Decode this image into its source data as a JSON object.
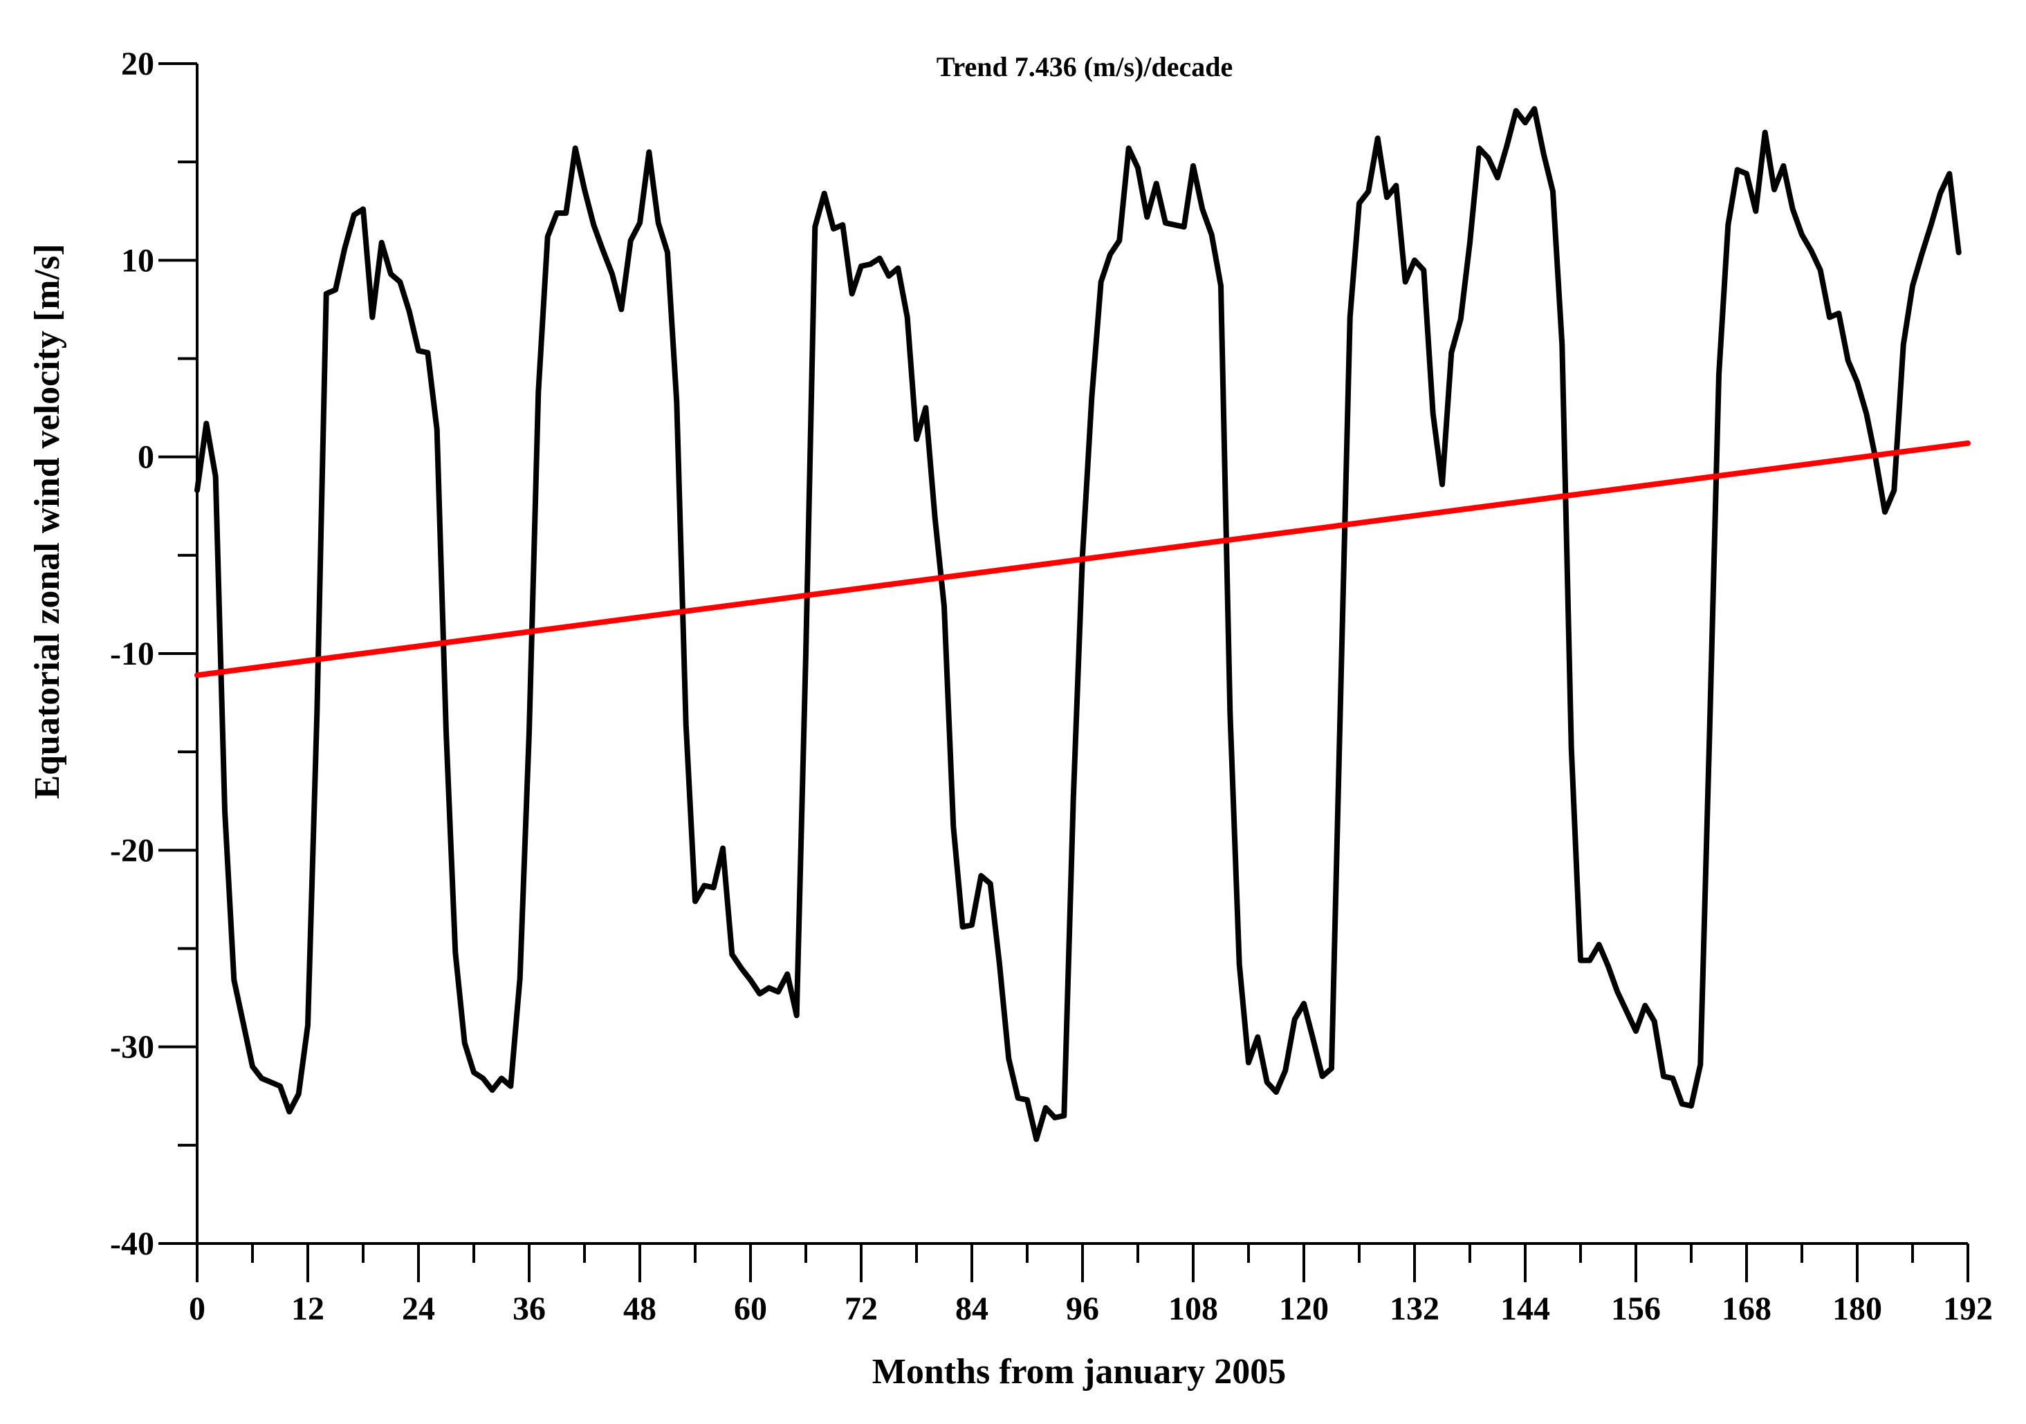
{
  "chart_data": {
    "type": "line",
    "annotation": "Trend 7.436 (m/s)/decade",
    "xlabel": "Months from january 2005",
    "ylabel": "Equatorial zonal wind velocity [m/s]",
    "xlim": [
      0,
      192
    ],
    "ylim": [
      -40,
      20
    ],
    "x_ticks": [
      "0",
      "12",
      "24",
      "36",
      "48",
      "60",
      "72",
      "84",
      "96",
      "108",
      "120",
      "132",
      "144",
      "156",
      "168",
      "180",
      "192"
    ],
    "y_ticks": [
      "20",
      "10",
      "0",
      "-10",
      "-20",
      "-30",
      "-40"
    ],
    "grid": false,
    "series": [
      {
        "color": "#000000",
        "points": [
          [
            0,
            -1.7
          ],
          [
            1,
            1.7
          ],
          [
            2,
            -1.0
          ],
          [
            3,
            -18.0
          ],
          [
            4,
            -26.6
          ],
          [
            5,
            -28.8
          ],
          [
            6,
            -31.0
          ],
          [
            7,
            -31.6
          ],
          [
            8,
            -31.8
          ],
          [
            9,
            -32.0
          ],
          [
            10,
            -33.3
          ],
          [
            11,
            -32.4
          ],
          [
            12,
            -28.9
          ],
          [
            13,
            -13.0
          ],
          [
            14,
            8.3
          ],
          [
            15,
            8.5
          ],
          [
            16,
            10.6
          ],
          [
            17,
            12.3
          ],
          [
            18,
            12.6
          ],
          [
            19,
            7.1
          ],
          [
            20,
            10.9
          ],
          [
            21,
            9.3
          ],
          [
            22,
            8.9
          ],
          [
            23,
            7.4
          ],
          [
            24,
            5.4
          ],
          [
            25,
            5.3
          ],
          [
            26,
            1.4
          ],
          [
            27,
            -14.0
          ],
          [
            28,
            -25.2
          ],
          [
            29,
            -29.8
          ],
          [
            30,
            -31.3
          ],
          [
            31,
            -31.6
          ],
          [
            32,
            -32.2
          ],
          [
            33,
            -31.6
          ],
          [
            34,
            -32.0
          ],
          [
            35,
            -26.5
          ],
          [
            36,
            -14.0
          ],
          [
            37,
            3.3
          ],
          [
            38,
            11.2
          ],
          [
            39,
            12.4
          ],
          [
            40,
            12.4
          ],
          [
            41,
            15.7
          ],
          [
            42,
            13.6
          ],
          [
            43,
            11.8
          ],
          [
            44,
            10.5
          ],
          [
            45,
            9.3
          ],
          [
            46,
            7.5
          ],
          [
            47,
            11.0
          ],
          [
            48,
            11.9
          ],
          [
            49,
            15.5
          ],
          [
            50,
            11.9
          ],
          [
            51,
            10.4
          ],
          [
            52,
            2.8
          ],
          [
            53,
            -13.6
          ],
          [
            54,
            -22.6
          ],
          [
            55,
            -21.8
          ],
          [
            56,
            -21.9
          ],
          [
            57,
            -19.9
          ],
          [
            58,
            -25.3
          ],
          [
            59,
            -26.0
          ],
          [
            60,
            -26.6
          ],
          [
            61,
            -27.3
          ],
          [
            62,
            -27.0
          ],
          [
            63,
            -27.2
          ],
          [
            64,
            -26.3
          ],
          [
            65,
            -28.4
          ],
          [
            66,
            -10.0
          ],
          [
            67,
            11.7
          ],
          [
            68,
            13.4
          ],
          [
            69,
            11.6
          ],
          [
            70,
            11.8
          ],
          [
            71,
            8.3
          ],
          [
            72,
            9.7
          ],
          [
            73,
            9.8
          ],
          [
            74,
            10.1
          ],
          [
            75,
            9.2
          ],
          [
            76,
            9.6
          ],
          [
            77,
            7.1
          ],
          [
            78,
            0.9
          ],
          [
            79,
            2.5
          ],
          [
            80,
            -3.1
          ],
          [
            81,
            -7.6
          ],
          [
            82,
            -18.8
          ],
          [
            83,
            -23.9
          ],
          [
            84,
            -23.8
          ],
          [
            85,
            -21.3
          ],
          [
            86,
            -21.7
          ],
          [
            87,
            -25.8
          ],
          [
            88,
            -30.6
          ],
          [
            89,
            -32.6
          ],
          [
            90,
            -32.7
          ],
          [
            91,
            -34.7
          ],
          [
            92,
            -33.1
          ],
          [
            93,
            -33.6
          ],
          [
            94,
            -33.5
          ],
          [
            95,
            -17.4
          ],
          [
            96,
            -5.0
          ],
          [
            97,
            3.0
          ],
          [
            98,
            8.9
          ],
          [
            99,
            10.3
          ],
          [
            100,
            11.0
          ],
          [
            101,
            15.7
          ],
          [
            102,
            14.7
          ],
          [
            103,
            12.2
          ],
          [
            104,
            13.9
          ],
          [
            105,
            11.9
          ],
          [
            106,
            11.8
          ],
          [
            107,
            11.7
          ],
          [
            108,
            14.8
          ],
          [
            109,
            12.6
          ],
          [
            110,
            11.3
          ],
          [
            111,
            8.7
          ],
          [
            112,
            -13.0
          ],
          [
            113,
            -25.8
          ],
          [
            114,
            -30.8
          ],
          [
            115,
            -29.5
          ],
          [
            116,
            -31.8
          ],
          [
            117,
            -32.3
          ],
          [
            118,
            -31.2
          ],
          [
            119,
            -28.6
          ],
          [
            120,
            -27.8
          ],
          [
            121,
            -29.6
          ],
          [
            122,
            -31.5
          ],
          [
            123,
            -31.1
          ],
          [
            124,
            -11.9
          ],
          [
            125,
            7.1
          ],
          [
            126,
            12.9
          ],
          [
            127,
            13.5
          ],
          [
            128,
            16.2
          ],
          [
            129,
            13.2
          ],
          [
            130,
            13.8
          ],
          [
            131,
            8.9
          ],
          [
            132,
            10.0
          ],
          [
            133,
            9.5
          ],
          [
            134,
            2.2
          ],
          [
            135,
            -1.4
          ],
          [
            136,
            5.3
          ],
          [
            137,
            7.0
          ],
          [
            138,
            10.9
          ],
          [
            139,
            15.7
          ],
          [
            140,
            15.2
          ],
          [
            141,
            14.2
          ],
          [
            142,
            15.8
          ],
          [
            143,
            17.6
          ],
          [
            144,
            17.0
          ],
          [
            145,
            17.7
          ],
          [
            146,
            15.4
          ],
          [
            147,
            13.5
          ],
          [
            148,
            5.7
          ],
          [
            149,
            -14.8
          ],
          [
            150,
            -25.6
          ],
          [
            151,
            -25.6
          ],
          [
            152,
            -24.8
          ],
          [
            153,
            -25.9
          ],
          [
            154,
            -27.2
          ],
          [
            155,
            -28.2
          ],
          [
            156,
            -29.2
          ],
          [
            157,
            -27.9
          ],
          [
            158,
            -28.7
          ],
          [
            159,
            -31.5
          ],
          [
            160,
            -31.6
          ],
          [
            161,
            -32.9
          ],
          [
            162,
            -33.0
          ],
          [
            163,
            -30.9
          ],
          [
            164,
            -13.8
          ],
          [
            165,
            4.2
          ],
          [
            166,
            11.8
          ],
          [
            167,
            14.6
          ],
          [
            168,
            14.4
          ],
          [
            169,
            12.5
          ],
          [
            170,
            16.5
          ],
          [
            171,
            13.6
          ],
          [
            172,
            14.8
          ],
          [
            173,
            12.6
          ],
          [
            174,
            11.3
          ],
          [
            175,
            10.5
          ],
          [
            176,
            9.5
          ],
          [
            177,
            7.1
          ],
          [
            178,
            7.3
          ],
          [
            179,
            4.9
          ],
          [
            180,
            3.8
          ],
          [
            181,
            2.2
          ],
          [
            182,
            -0.1
          ],
          [
            183,
            -2.8
          ],
          [
            184,
            -1.7
          ],
          [
            185,
            5.7
          ],
          [
            186,
            8.7
          ],
          [
            187,
            10.3
          ],
          [
            188,
            11.8
          ],
          [
            189,
            13.4
          ],
          [
            190,
            14.4
          ],
          [
            191,
            10.4
          ]
        ]
      },
      {
        "color": "#ff0000",
        "points": [
          [
            0,
            -11.1
          ],
          [
            192,
            0.7
          ]
        ]
      }
    ]
  }
}
